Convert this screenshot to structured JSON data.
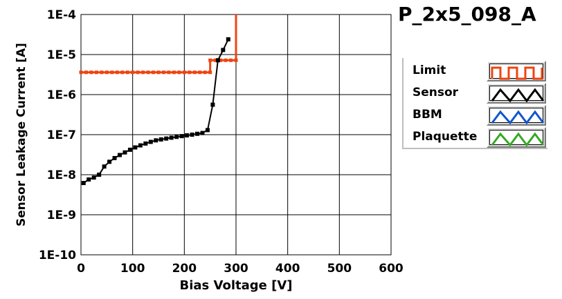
{
  "title": "P_2x5_098_A",
  "legend": {
    "items": [
      {
        "label": "Limit",
        "color": "#ee4411",
        "shape": "square-wave"
      },
      {
        "label": "Sensor",
        "color": "#000000",
        "shape": "triangle-wave"
      },
      {
        "label": "BBM",
        "color": "#1155cc",
        "shape": "triangle-wave"
      },
      {
        "label": "Plaquette",
        "color": "#33aa22",
        "shape": "triangle-wave"
      }
    ]
  },
  "chart_data": {
    "type": "line",
    "xlabel": "Bias Voltage [V]",
    "ylabel": "Sensor Leakage Current [A]",
    "xlim": [
      0,
      600
    ],
    "ylim_log10": [
      -10,
      -4
    ],
    "y_scale": "log",
    "grid": true,
    "x_ticks": [
      0,
      100,
      200,
      300,
      400,
      500,
      600
    ],
    "x_tick_labels": [
      "0",
      "100",
      "200",
      "300",
      "400",
      "500",
      "600"
    ],
    "y_ticks": [
      1e-10,
      1e-09,
      1e-08,
      1e-07,
      1e-06,
      1e-05,
      0.0001
    ],
    "y_tick_labels": [
      "1E-10",
      "1E-9",
      "1E-8",
      "1E-7",
      "1E-6",
      "1E-5",
      "1E-4"
    ],
    "series": [
      {
        "name": "Limit",
        "color": "#ee4411",
        "marker": "square",
        "x": [
          0,
          10,
          20,
          30,
          40,
          50,
          60,
          70,
          80,
          90,
          100,
          110,
          120,
          130,
          140,
          150,
          160,
          170,
          180,
          190,
          200,
          210,
          220,
          230,
          240,
          250,
          250,
          260,
          270,
          280,
          290,
          300,
          300
        ],
        "y": [
          3.6e-06,
          3.6e-06,
          3.6e-06,
          3.6e-06,
          3.6e-06,
          3.6e-06,
          3.6e-06,
          3.6e-06,
          3.6e-06,
          3.6e-06,
          3.6e-06,
          3.6e-06,
          3.6e-06,
          3.6e-06,
          3.6e-06,
          3.6e-06,
          3.6e-06,
          3.6e-06,
          3.6e-06,
          3.6e-06,
          3.6e-06,
          3.6e-06,
          3.6e-06,
          3.6e-06,
          3.6e-06,
          3.6e-06,
          7.2e-06,
          7.2e-06,
          7.2e-06,
          7.2e-06,
          7.2e-06,
          7.2e-06,
          0.0001
        ]
      },
      {
        "name": "Sensor",
        "color": "#000000",
        "marker": "square",
        "x": [
          5,
          15,
          25,
          35,
          45,
          55,
          65,
          75,
          85,
          95,
          105,
          115,
          125,
          135,
          145,
          155,
          165,
          175,
          185,
          195,
          205,
          215,
          225,
          235,
          245,
          255,
          265,
          275,
          285
        ],
        "y": [
          6.2e-09,
          7.6e-09,
          8.5e-09,
          1e-08,
          1.6e-08,
          2.1e-08,
          2.6e-08,
          3.1e-08,
          3.6e-08,
          4.2e-08,
          4.8e-08,
          5.4e-08,
          6e-08,
          6.6e-08,
          7.2e-08,
          7.6e-08,
          8e-08,
          8.4e-08,
          8.8e-08,
          9.2e-08,
          9.6e-08,
          1e-07,
          1.05e-07,
          1.1e-07,
          1.3e-07,
          5.6e-07,
          7.2e-06,
          1.3e-05,
          2.4e-05
        ]
      },
      {
        "name": "BBM",
        "color": "#1155cc",
        "x": [],
        "y": []
      },
      {
        "name": "Plaquette",
        "color": "#33aa22",
        "x": [],
        "y": []
      }
    ]
  }
}
